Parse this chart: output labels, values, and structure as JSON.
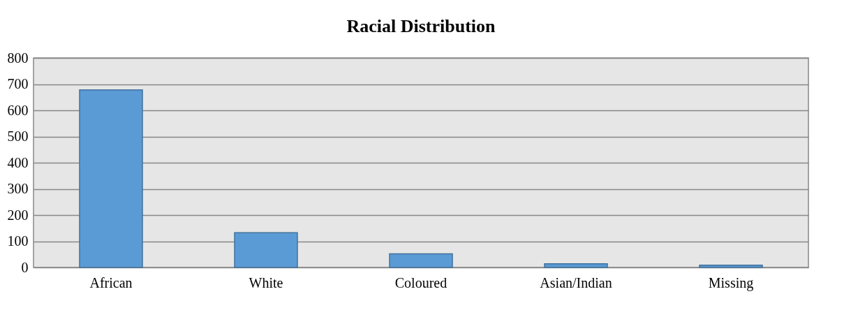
{
  "chart_data": {
    "type": "bar",
    "title": "Racial Distribution",
    "categories": [
      "African",
      "White",
      "Coloured",
      "Asian/Indian",
      "Missing"
    ],
    "values": [
      678,
      133,
      52,
      14,
      9
    ],
    "color": "#5b9bd5",
    "ylim": [
      0,
      800
    ],
    "yticks": [
      0,
      100,
      200,
      300,
      400,
      500,
      600,
      700,
      800
    ],
    "grid": "y"
  }
}
